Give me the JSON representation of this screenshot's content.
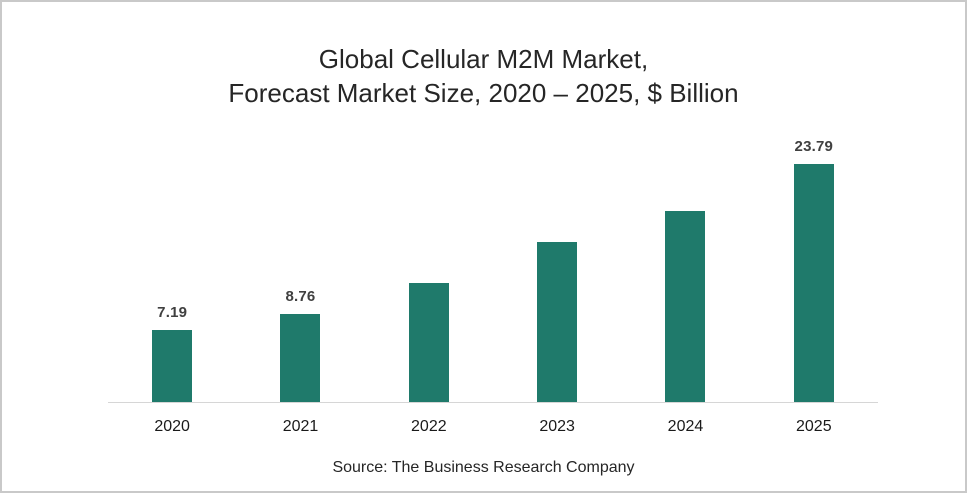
{
  "title": {
    "line1": "Global Cellular M2M Market,",
    "line2": "Forecast Market Size, 2020 – 2025, $ Billion"
  },
  "source_text": "Source: The Business Research Company",
  "colors": {
    "bar": "#1f7a6b",
    "axis_line": "#d6d6d6",
    "title_text": "#262626",
    "data_label_text": "#404040",
    "frame_border": "#c9c9c9"
  },
  "chart_data": {
    "type": "bar",
    "title": "Global Cellular M2M Market, Forecast Market Size, 2020 – 2025, $ Billion",
    "unit": "$ Billion",
    "categories": [
      "2020",
      "2021",
      "2022",
      "2023",
      "2024",
      "2025"
    ],
    "values": [
      7.19,
      8.76,
      11.9,
      16.0,
      19.1,
      23.79
    ],
    "data_labels": [
      "7.19",
      "8.76",
      "",
      "",
      "",
      "23.79"
    ],
    "xlabel": "",
    "ylabel": "",
    "ylim": [
      0,
      25
    ],
    "grid": false,
    "legend": false,
    "y_axis_visible": false,
    "bar_color": "#1f7a6b"
  }
}
